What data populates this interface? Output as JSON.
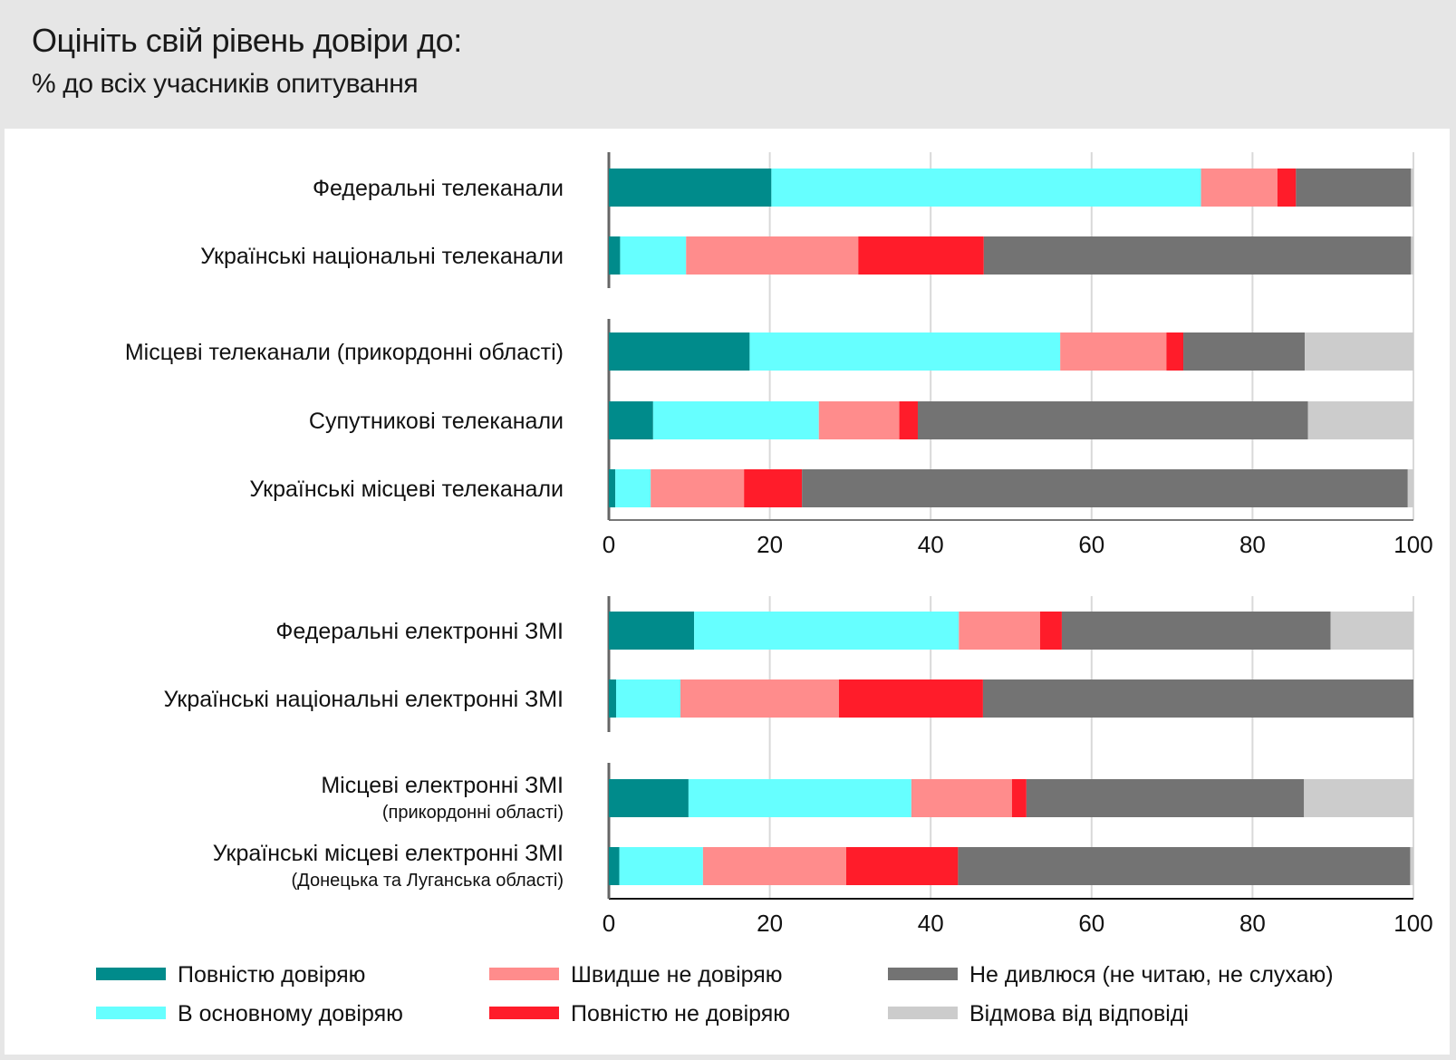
{
  "header": {
    "title": "Оцініть свій рівень довіри до:",
    "subtitle": "% до всіх учасників опитування"
  },
  "chart_data": {
    "type": "bar",
    "orientation": "horizontal",
    "stacked": true,
    "title": "Оцініть свій рівень довіри до:",
    "subtitle": "% до всіх учасників опитування",
    "xlim": [
      0,
      100
    ],
    "xticks": [
      0,
      20,
      40,
      60,
      80,
      100
    ],
    "xtick_labels": [
      "0",
      "20",
      "40",
      "60",
      "80",
      "100"
    ],
    "grid": "vertical",
    "legend_position": "bottom",
    "series": [
      {
        "name": "Повністю довіряю",
        "color": "#008b8b"
      },
      {
        "name": "В основному довіряю",
        "color": "#66ffff"
      },
      {
        "name": "Швидше не довіряю",
        "color": "#ff8c8c"
      },
      {
        "name": "Повністю не довіряю",
        "color": "#ff1c2a"
      },
      {
        "name": "Не дивлюся (не читаю, не слухаю)",
        "color": "#737373"
      },
      {
        "name": "Відмова від відповіді",
        "color": "#cccccc"
      }
    ],
    "panels": [
      {
        "groups": [
          {
            "rows": [
              {
                "label": "Федеральні телеканали",
                "sublabel": "",
                "values": [
                  20.2,
                  53.4,
                  9.5,
                  2.3,
                  14.3,
                  0.3
                ]
              },
              {
                "label": "Українські національні телеканали",
                "sublabel": "",
                "values": [
                  1.4,
                  8.2,
                  21.4,
                  15.6,
                  53.1,
                  0.3
                ]
              }
            ]
          },
          {
            "rows": [
              {
                "label": "Місцеві телеканали (прикордонні області)",
                "sublabel": "",
                "values": [
                  17.5,
                  38.6,
                  13.2,
                  2.1,
                  15.1,
                  13.5
                ]
              },
              {
                "label": "Супутникові телеканали",
                "sublabel": "",
                "values": [
                  5.5,
                  20.6,
                  10.0,
                  2.3,
                  48.5,
                  13.1
                ]
              },
              {
                "label": "Українські місцеві телеканали",
                "sublabel": "",
                "values": [
                  0.8,
                  4.4,
                  11.6,
                  7.2,
                  75.3,
                  0.7
                ]
              }
            ]
          }
        ]
      },
      {
        "groups": [
          {
            "rows": [
              {
                "label": "Федеральні електронні ЗМІ",
                "sublabel": "",
                "values": [
                  10.6,
                  32.9,
                  10.1,
                  2.7,
                  33.4,
                  10.3
                ]
              },
              {
                "label": "Українські національні електронні ЗМІ",
                "sublabel": "",
                "values": [
                  0.9,
                  8.0,
                  19.7,
                  17.9,
                  53.5,
                  0.0
                ]
              }
            ]
          },
          {
            "rows": [
              {
                "label": "Місцеві електронні ЗМІ",
                "sublabel": "(прикордонні області)",
                "values": [
                  9.9,
                  27.7,
                  12.5,
                  1.8,
                  34.5,
                  13.6
                ]
              },
              {
                "label": "Українські місцеві електронні ЗМІ",
                "sublabel": "(Донецька та Луганська області)",
                "values": [
                  1.3,
                  10.4,
                  17.8,
                  13.9,
                  56.2,
                  0.4
                ]
              }
            ]
          }
        ]
      }
    ]
  },
  "legend": {
    "items": [
      {
        "label": "Повністю довіряю",
        "color": "#008b8b"
      },
      {
        "label": "В основному довіряю",
        "color": "#66ffff"
      },
      {
        "label": "Швидше не довіряю",
        "color": "#ff8c8c"
      },
      {
        "label": "Повністю не довіряю",
        "color": "#ff1c2a"
      },
      {
        "label": "Не дивлюся (не читаю, не слухаю)",
        "color": "#737373"
      },
      {
        "label": "Відмова від відповіді",
        "color": "#cccccc"
      }
    ]
  }
}
